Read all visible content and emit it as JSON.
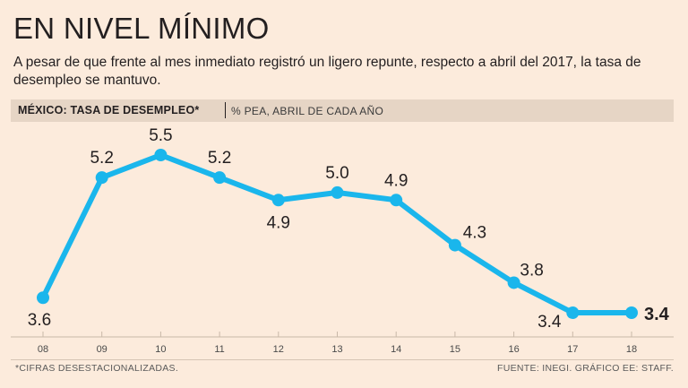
{
  "header": {
    "title": "EN NIVEL MÍNIMO",
    "subtitle": "A pesar de que frente al mes inmediato registró un ligero repunte, respecto a abril del 2017, la tasa de desempleo se mantuvo."
  },
  "band": {
    "title": "MÉXICO: TASA DE DESEMPLEO*",
    "unit": "% PEA, ABRIL DE CADA AÑO"
  },
  "footer": {
    "note": "*CIFRAS DESESTACIONALIZADAS.",
    "source": "FUENTE: INEGI. GRÁFICO EE: STAFF."
  },
  "colors": {
    "line": "#1ab6ec",
    "background": "#fcebdc",
    "band": "#e6d5c5"
  },
  "chart_data": {
    "type": "line",
    "title": "MÉXICO: TASA DE DESEMPLEO*",
    "subtitle": "% PEA, ABRIL DE CADA AÑO",
    "xlabel": "",
    "ylabel": "",
    "categories": [
      "08",
      "09",
      "10",
      "11",
      "12",
      "13",
      "14",
      "15",
      "16",
      "17",
      "18"
    ],
    "values": [
      3.6,
      5.2,
      5.5,
      5.2,
      4.9,
      5.0,
      4.9,
      4.3,
      3.8,
      3.4,
      3.4
    ],
    "data_labels": [
      "3.6",
      "5.2",
      "5.5",
      "5.2",
      "4.9",
      "5.0",
      "4.9",
      "4.3",
      "3.8",
      "3.4",
      "3.4"
    ],
    "label_position": [
      "below",
      "above",
      "above",
      "above",
      "below",
      "above",
      "above",
      "above",
      "above",
      "below",
      "right"
    ],
    "highlight_last": true,
    "ylim": [
      3.2,
      5.7
    ],
    "grid": false,
    "legend": "none"
  }
}
